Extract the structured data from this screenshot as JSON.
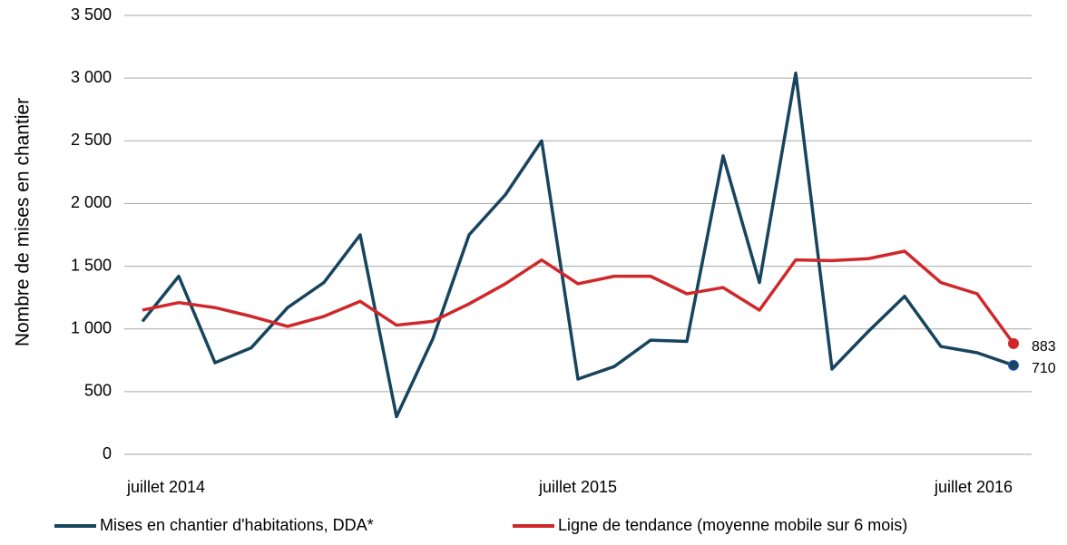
{
  "chart_data": {
    "type": "line",
    "ylabel": "Nombre de mises en chantier",
    "categories": [
      "juillet 2014",
      null,
      null,
      null,
      null,
      null,
      null,
      null,
      null,
      null,
      null,
      null,
      "juillet 2015",
      null,
      null,
      null,
      null,
      null,
      null,
      null,
      null,
      null,
      null,
      null,
      "juillet 2016"
    ],
    "series": [
      {
        "name": "Mises en chantier d'habitations, DDA*",
        "color": "#17445e",
        "values": [
          1060,
          1420,
          730,
          850,
          1170,
          1370,
          1750,
          300,
          920,
          1750,
          2070,
          2500,
          600,
          700,
          910,
          900,
          2380,
          1370,
          3040,
          680,
          980,
          1260,
          860,
          810,
          710
        ]
      },
      {
        "name": "Ligne de tendance (moyenne mobile sur 6 mois)",
        "color": "#d0282a",
        "values": [
          1150,
          1210,
          1170,
          1100,
          1020,
          1100,
          1220,
          1030,
          1060,
          1200,
          1360,
          1550,
          1360,
          1420,
          1420,
          1280,
          1330,
          1150,
          1550,
          1545,
          1560,
          1620,
          1370,
          1280,
          883
        ]
      }
    ],
    "ylim": [
      0,
      3500
    ],
    "yticks": [
      0,
      500,
      {
        "value": 1000,
        "label": "1 000"
      },
      {
        "value": 1500,
        "label": "1 500"
      },
      {
        "value": 2000,
        "label": "2 000"
      },
      {
        "value": 2500,
        "label": "2 500"
      },
      {
        "value": 3000,
        "label": "3 000"
      },
      {
        "value": 3500,
        "label": "3 500"
      }
    ],
    "grid": true,
    "legend": "bottom"
  }
}
